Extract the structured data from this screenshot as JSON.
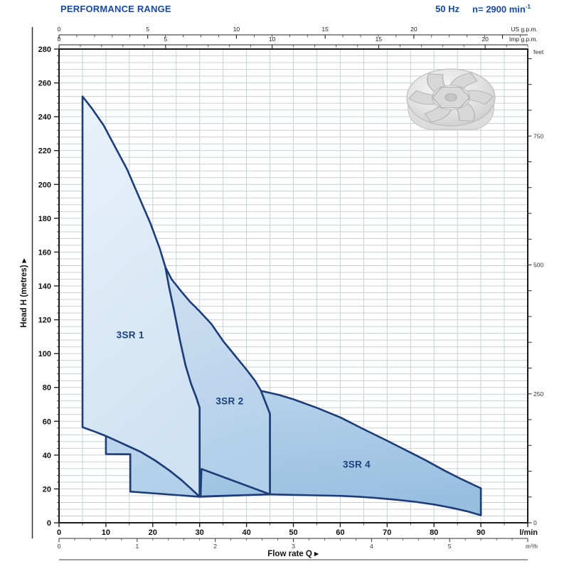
{
  "header": {
    "title": "PERFORMANCE RANGE",
    "frequency": "50 Hz",
    "speed_prefix": "n= 2900",
    "speed_unit": "min",
    "speed_exponent": "-1"
  },
  "chart_data": {
    "type": "area",
    "title": "Performance range chart, head vs flow rate",
    "axis_titles": {
      "y_left": "Head H (metres)",
      "x_bottom": "Flow rate Q",
      "arrow": "▸"
    },
    "x_axes": {
      "lmin": {
        "unit": "l/min",
        "range": [
          0,
          100
        ],
        "labeled": [
          0,
          10,
          20,
          30,
          40,
          50,
          60,
          70,
          80,
          90
        ],
        "minor_step": 5
      },
      "m3h": {
        "unit": "m³/h",
        "range": [
          0,
          6
        ],
        "labeled": [
          0,
          1,
          2,
          3,
          4,
          5
        ],
        "minor_step": 0.2,
        "lmin_per_unit": 16.667
      },
      "usgpm": {
        "unit": "US g.p.m.",
        "range": [
          0,
          26
        ],
        "labeled": [
          0,
          5,
          10,
          15,
          20
        ],
        "minor_step": 1,
        "lmin_per_unit": 3.785
      },
      "impgpm": {
        "unit": "Imp g.p.m.",
        "range": [
          0,
          22
        ],
        "labeled": [
          0,
          5,
          10,
          15,
          20
        ],
        "minor_step": 1,
        "lmin_per_unit": 4.546
      }
    },
    "y_axes": {
      "metres": {
        "unit": "metres",
        "range": [
          0,
          280
        ],
        "labeled": [
          0,
          20,
          40,
          60,
          80,
          100,
          120,
          140,
          160,
          180,
          200,
          220,
          240,
          260,
          280
        ],
        "minor_step": 4
      },
      "feet": {
        "unit": "feet",
        "range": [
          0,
          900
        ],
        "labeled": [
          0,
          250,
          500,
          750
        ],
        "tick_step": 50,
        "m_per_unit": 0.3048
      }
    },
    "grid": {
      "x_step_lmin": 5,
      "y_step_m": 4
    },
    "series": [
      {
        "name": "3SR 1",
        "label_pos": [
          15.2,
          109
        ],
        "q_range_lmin": [
          5,
          30
        ],
        "h_max_m": 252,
        "outline": [
          [
            5,
            252
          ],
          [
            7,
            245
          ],
          [
            9.5,
            235
          ],
          [
            12,
            222
          ],
          [
            14.5,
            209
          ],
          [
            17,
            193
          ],
          [
            19.5,
            177
          ],
          [
            21.5,
            162
          ],
          [
            22.7,
            151
          ],
          [
            23.5,
            139
          ],
          [
            24.5,
            126
          ],
          [
            25.8,
            108
          ],
          [
            27,
            93
          ],
          [
            28.2,
            82
          ],
          [
            29.3,
            74
          ],
          [
            30,
            68
          ],
          [
            30,
            15.4
          ],
          [
            28,
            20.5
          ],
          [
            26,
            25.5
          ],
          [
            23.5,
            31
          ],
          [
            20.5,
            36.8
          ],
          [
            17.5,
            41.8
          ],
          [
            14,
            46.2
          ],
          [
            10,
            51.3
          ],
          [
            7.5,
            54
          ],
          [
            5,
            56.5
          ]
        ]
      },
      {
        "name": "3SR 2",
        "label_pos": [
          36.4,
          70
        ],
        "q_range_lmin": [
          10,
          45
        ],
        "h_max_m": 151,
        "outline": [
          [
            22.7,
            151
          ],
          [
            24,
            144
          ],
          [
            26,
            137
          ],
          [
            28,
            130.5
          ],
          [
            30,
            125
          ],
          [
            32.5,
            117.5
          ],
          [
            35,
            107.5
          ],
          [
            37.5,
            99
          ],
          [
            40,
            90.5
          ],
          [
            41.8,
            84
          ],
          [
            43.1,
            78
          ],
          [
            45,
            64.4
          ],
          [
            45,
            16.8
          ],
          [
            30,
            15.4
          ],
          [
            30,
            68
          ],
          [
            29.3,
            74
          ],
          [
            28.2,
            82
          ],
          [
            27,
            93
          ],
          [
            25.8,
            108
          ],
          [
            24.5,
            126
          ],
          [
            23.5,
            139
          ]
        ],
        "outline2": [
          [
            10,
            51.3
          ],
          [
            14,
            46.2
          ],
          [
            17.5,
            41.8
          ],
          [
            20.5,
            36.8
          ],
          [
            23.5,
            31
          ],
          [
            26,
            25.5
          ],
          [
            28,
            20.5
          ],
          [
            30,
            15.4
          ],
          [
            15.2,
            18.4
          ],
          [
            15.2,
            40.5
          ],
          [
            10,
            40.6
          ]
        ]
      },
      {
        "name": "3SR 4",
        "label_pos": [
          63.5,
          32.5
        ],
        "q_range_lmin": [
          30,
          90
        ],
        "h_max_m": 78,
        "outline": [
          [
            45,
            16.8
          ],
          [
            50,
            16.5
          ],
          [
            55,
            16.2
          ],
          [
            60,
            15.9
          ],
          [
            64,
            15.4
          ],
          [
            68,
            14.6
          ],
          [
            72,
            13.6
          ],
          [
            76,
            12.4
          ],
          [
            80,
            10.8
          ],
          [
            84,
            8.7
          ],
          [
            87,
            6.8
          ],
          [
            90,
            4.4
          ],
          [
            90,
            20.4
          ],
          [
            86,
            25.6
          ],
          [
            82,
            31.2
          ],
          [
            78,
            37.3
          ],
          [
            74,
            42.9
          ],
          [
            70,
            48.5
          ],
          [
            65,
            55.3
          ],
          [
            60,
            62.3
          ],
          [
            55,
            68
          ],
          [
            50,
            73
          ],
          [
            47,
            75.5
          ],
          [
            43.1,
            78
          ],
          [
            45,
            64.4
          ]
        ],
        "outline2": [
          [
            30.4,
            31.8
          ],
          [
            45,
            16.8
          ],
          [
            30.2,
            15.5
          ]
        ]
      }
    ],
    "colors": {
      "outline": "#1d3d78",
      "label": "#1c3f7d",
      "fill_3sr1": [
        "#eaf2fa",
        "#cfe2f3"
      ],
      "fill_3sr2": [
        "#d2e2f3",
        "#b2cfe9"
      ],
      "fill_3sr4": [
        "#b9d3eb",
        "#99bfe0"
      ],
      "grid": "#cbcfd3",
      "border": "#1a1a1a",
      "tick_text": "#111111",
      "small_text": "#333333",
      "header_blue": "#1a4a9c"
    },
    "legend_position": "inside-regions"
  }
}
